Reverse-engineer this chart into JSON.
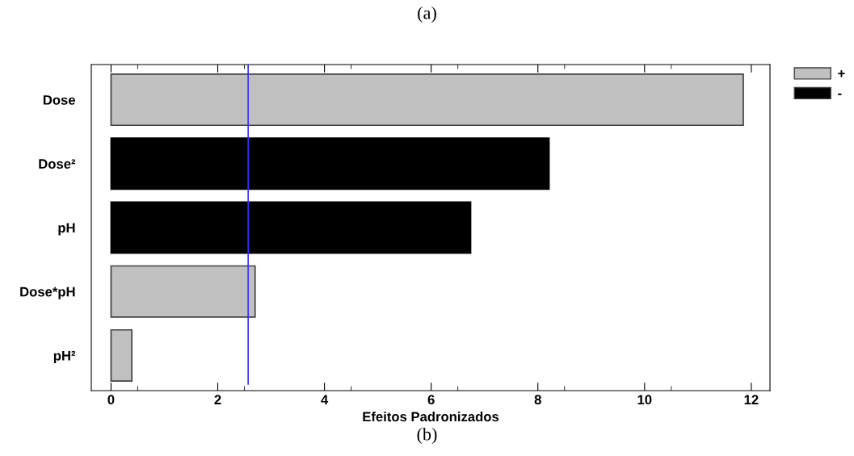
{
  "chart_data": {
    "type": "bar",
    "orientation": "horizontal",
    "title": "(a)",
    "xlabel": "Efeitos Padronizados",
    "categories": [
      "Dose",
      "Dose²",
      "pH",
      "Dose*pH",
      "pH²"
    ],
    "series": [
      {
        "name": "+",
        "color": "#c0c0c0",
        "values": [
          11.85,
          null,
          null,
          2.7,
          0.39
        ]
      },
      {
        "name": "-",
        "color": "#000000",
        "values": [
          null,
          8.21,
          6.74,
          null,
          null
        ]
      }
    ],
    "xlim": [
      -0.37,
      12.35
    ],
    "xticks": [
      0,
      2,
      4,
      6,
      8,
      10,
      12
    ],
    "ref_lines": [
      {
        "axis": "x",
        "value": 2.57,
        "color": "#3333ff"
      }
    ],
    "annotations": [
      "(b)"
    ],
    "grid": false,
    "legend": "top right"
  }
}
